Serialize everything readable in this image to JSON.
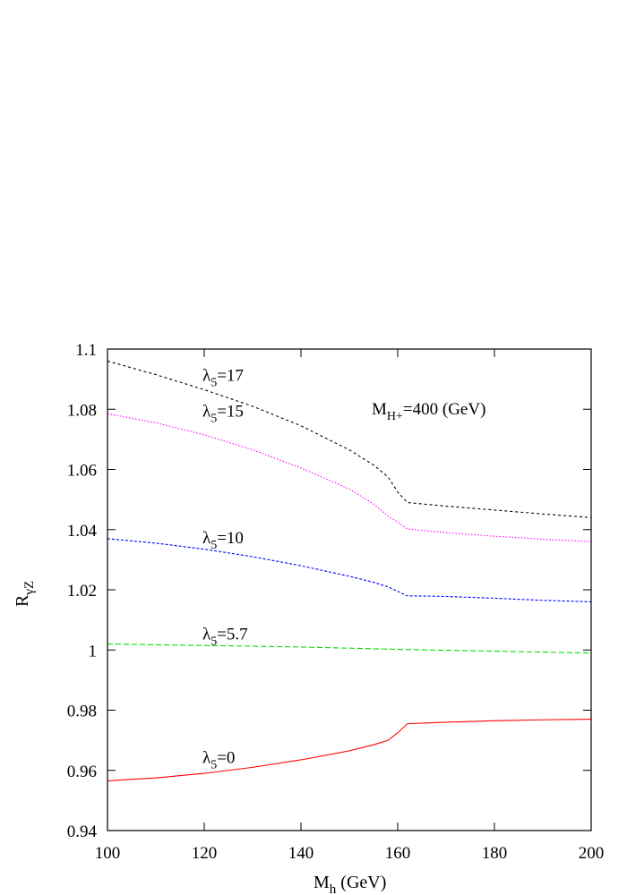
{
  "chart_data": {
    "type": "line",
    "xlim": [
      100,
      200
    ],
    "ylim": [
      0.94,
      1.1
    ],
    "x_ticks": [
      100,
      120,
      140,
      160,
      180,
      200
    ],
    "x_tick_labels": [
      "100",
      "120",
      "140",
      "160",
      "180",
      "200"
    ],
    "y_ticks": [
      0.94,
      0.96,
      0.98,
      1.0,
      1.02,
      1.04,
      1.06,
      1.08,
      1.1
    ],
    "y_tick_labels": [
      "0.94",
      "0.96",
      "0.98",
      "1",
      "1.02",
      "1.04",
      "1.06",
      "1.08",
      "1.1"
    ],
    "xlabel": {
      "main": "M",
      "sub": "h",
      "rest": " (GeV)"
    },
    "ylabel": {
      "main": "R",
      "sub": "γZ"
    },
    "annotation": {
      "main": "M",
      "sub": "H+",
      "rest": "=400 (GeV)"
    },
    "grid": false,
    "series": [
      {
        "label": {
          "main": "λ",
          "sub": "5",
          "rest": "=17"
        },
        "label_at": [
          120,
          1.0895
        ],
        "color": "#000000",
        "dash": "3,3",
        "x": [
          100,
          110,
          120,
          130,
          140,
          150,
          155,
          158,
          160,
          162,
          170,
          180,
          190,
          200
        ],
        "y": [
          1.096,
          1.0915,
          1.0865,
          1.081,
          1.0745,
          1.0665,
          1.0615,
          1.0575,
          1.0525,
          1.049,
          1.0478,
          1.0465,
          1.0452,
          1.044
        ]
      },
      {
        "label": {
          "main": "λ",
          "sub": "5",
          "rest": "=15"
        },
        "label_at": [
          120,
          1.0775
        ],
        "color": "#ff00ff",
        "dash": "1.5,2",
        "x": [
          100,
          110,
          120,
          130,
          140,
          150,
          155,
          158,
          160,
          162,
          170,
          180,
          190,
          200
        ],
        "y": [
          1.0785,
          1.0755,
          1.0715,
          1.0665,
          1.0605,
          1.0535,
          1.0485,
          1.0445,
          1.0425,
          1.0402,
          1.039,
          1.0378,
          1.0368,
          1.036
        ]
      },
      {
        "label": {
          "main": "λ",
          "sub": "5",
          "rest": "=10"
        },
        "label_at": [
          120,
          1.0355
        ],
        "color": "#0000ff",
        "dash": "3,2",
        "x": [
          100,
          110,
          120,
          130,
          140,
          150,
          155,
          158,
          160,
          162,
          170,
          180,
          190,
          200
        ],
        "y": [
          1.037,
          1.0355,
          1.0335,
          1.031,
          1.028,
          1.0245,
          1.0225,
          1.021,
          1.0195,
          1.018,
          1.0178,
          1.0172,
          1.0165,
          1.016
        ]
      },
      {
        "label": {
          "main": "λ",
          "sub": "5",
          "rest": "=5.7"
        },
        "label_at": [
          120,
          1.0035
        ],
        "color": "#00dd00",
        "dash": "6,3",
        "x": [
          100,
          120,
          140,
          160,
          180,
          200
        ],
        "y": [
          1.002,
          1.0015,
          1.001,
          1.0002,
          0.9996,
          0.999
        ]
      },
      {
        "label": {
          "main": "λ",
          "sub": "5",
          "rest": "=0"
        },
        "label_at": [
          120,
          0.9625
        ],
        "color": "#ff0000",
        "dash": "",
        "x": [
          100,
          110,
          120,
          130,
          140,
          150,
          155,
          158,
          160,
          162,
          170,
          180,
          190,
          200
        ],
        "y": [
          0.9565,
          0.9575,
          0.959,
          0.961,
          0.9635,
          0.9665,
          0.9685,
          0.97,
          0.9725,
          0.9755,
          0.976,
          0.9765,
          0.9768,
          0.977
        ]
      }
    ]
  }
}
